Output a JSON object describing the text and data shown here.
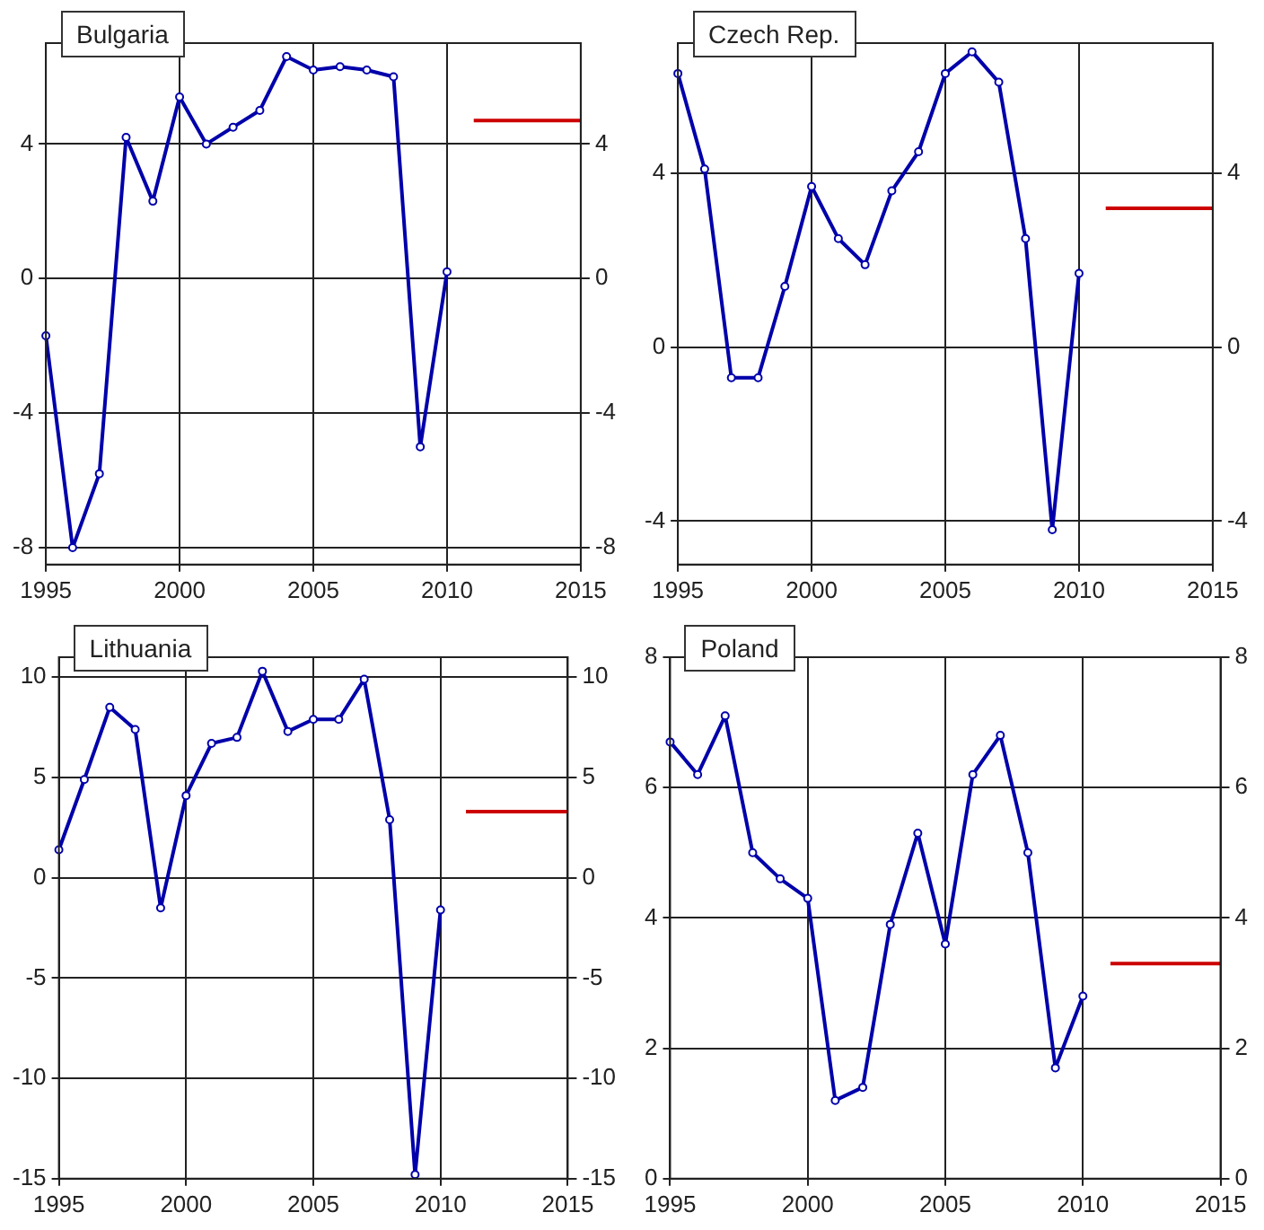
{
  "chart_data": [
    {
      "type": "line",
      "title": "Bulgaria",
      "x": [
        1995,
        1996,
        1997,
        1998,
        1999,
        2000,
        2001,
        2002,
        2003,
        2004,
        2005,
        2006,
        2007,
        2008,
        2009,
        2010,
        2011,
        2012,
        2013,
        2014,
        2015
      ],
      "xlim": [
        1995,
        2015
      ],
      "xticks": [
        1995,
        2000,
        2005,
        2010,
        2015
      ],
      "ylim": [
        -8.5,
        7
      ],
      "yticks": [
        -8,
        -4,
        0,
        4
      ],
      "y2lim": [
        -8.5,
        7
      ],
      "y2ticks": [
        -8,
        -4,
        0,
        4
      ],
      "grid": true,
      "marker": "circle",
      "series": [
        {
          "color": "#0000aa",
          "values": [
            -1.7,
            -8.0,
            -5.8,
            4.2,
            2.3,
            5.4,
            4.0,
            4.5,
            5.0,
            6.6,
            6.2,
            6.3,
            6.2,
            6.0,
            -5.0,
            0.2,
            null,
            null,
            null,
            null,
            null
          ]
        },
        {
          "color": "#cc0000",
          "marker": "none",
          "values": [
            null,
            null,
            null,
            null,
            null,
            null,
            null,
            null,
            null,
            null,
            null,
            null,
            null,
            null,
            null,
            null,
            4.7,
            4.7,
            4.7,
            4.7,
            4.7
          ]
        }
      ]
    },
    {
      "type": "line",
      "title": "Czech Rep.",
      "x": [
        1995,
        1996,
        1997,
        1998,
        1999,
        2000,
        2001,
        2002,
        2003,
        2004,
        2005,
        2006,
        2007,
        2008,
        2009,
        2010,
        2011,
        2012,
        2013,
        2014,
        2015
      ],
      "xlim": [
        1995,
        2015
      ],
      "xticks": [
        1995,
        2000,
        2005,
        2010,
        2015
      ],
      "ylim": [
        -5,
        7
      ],
      "yticks": [
        -4,
        0,
        4
      ],
      "y2lim": [
        -5,
        7
      ],
      "y2ticks": [
        -4,
        0,
        4
      ],
      "grid": true,
      "marker": "circle",
      "series": [
        {
          "color": "#0000aa",
          "values": [
            6.3,
            4.1,
            -0.7,
            -0.7,
            1.4,
            3.7,
            2.5,
            1.9,
            3.6,
            4.5,
            6.3,
            6.8,
            6.1,
            2.5,
            -4.2,
            1.7,
            null,
            null,
            null,
            null,
            null
          ]
        },
        {
          "color": "#cc0000",
          "marker": "none",
          "values": [
            null,
            null,
            null,
            null,
            null,
            null,
            null,
            null,
            null,
            null,
            null,
            null,
            null,
            null,
            null,
            null,
            3.2,
            3.2,
            3.2,
            3.2,
            3.2
          ]
        }
      ]
    },
    {
      "type": "line",
      "title": "Lithuania",
      "x": [
        1995,
        1996,
        1997,
        1998,
        1999,
        2000,
        2001,
        2002,
        2003,
        2004,
        2005,
        2006,
        2007,
        2008,
        2009,
        2010,
        2011,
        2012,
        2013,
        2014,
        2015
      ],
      "xlim": [
        1995,
        2015
      ],
      "xticks": [
        1995,
        2000,
        2005,
        2010,
        2015
      ],
      "ylim": [
        -15,
        11
      ],
      "yticks": [
        -15,
        -10,
        -5,
        0,
        5,
        10
      ],
      "y2lim": [
        -15,
        11
      ],
      "y2ticks": [
        -15,
        -10,
        -5,
        0,
        5,
        10
      ],
      "grid": true,
      "marker": "circle",
      "series": [
        {
          "color": "#0000aa",
          "values": [
            1.4,
            4.9,
            8.5,
            7.4,
            -1.5,
            4.1,
            6.7,
            7.0,
            10.3,
            7.3,
            7.9,
            7.9,
            9.9,
            2.9,
            -14.8,
            -1.6,
            null,
            null,
            null,
            null,
            null
          ]
        },
        {
          "color": "#cc0000",
          "marker": "none",
          "values": [
            null,
            null,
            null,
            null,
            null,
            null,
            null,
            null,
            null,
            null,
            null,
            null,
            null,
            null,
            null,
            null,
            3.3,
            3.3,
            3.3,
            3.3,
            3.3
          ]
        }
      ]
    },
    {
      "type": "line",
      "title": "Poland",
      "x": [
        1995,
        1996,
        1997,
        1998,
        1999,
        2000,
        2001,
        2002,
        2003,
        2004,
        2005,
        2006,
        2007,
        2008,
        2009,
        2010,
        2011,
        2012,
        2013,
        2014,
        2015
      ],
      "xlim": [
        1995,
        2015
      ],
      "xticks": [
        1995,
        2000,
        2005,
        2010,
        2015
      ],
      "ylim": [
        0,
        8
      ],
      "yticks": [
        0,
        2,
        4,
        6,
        8
      ],
      "y2lim": [
        0,
        8
      ],
      "y2ticks": [
        0,
        2,
        4,
        6,
        8
      ],
      "grid": true,
      "marker": "circle",
      "series": [
        {
          "color": "#0000aa",
          "values": [
            6.7,
            6.2,
            7.1,
            5.0,
            4.6,
            4.3,
            1.2,
            1.4,
            3.9,
            5.3,
            3.6,
            6.2,
            6.8,
            5.0,
            1.7,
            2.8,
            null,
            null,
            null,
            null,
            null
          ]
        },
        {
          "color": "#cc0000",
          "marker": "none",
          "values": [
            null,
            null,
            null,
            null,
            null,
            null,
            null,
            null,
            null,
            null,
            null,
            null,
            null,
            null,
            null,
            null,
            3.3,
            3.3,
            3.3,
            3.3,
            3.3
          ]
        }
      ]
    }
  ]
}
